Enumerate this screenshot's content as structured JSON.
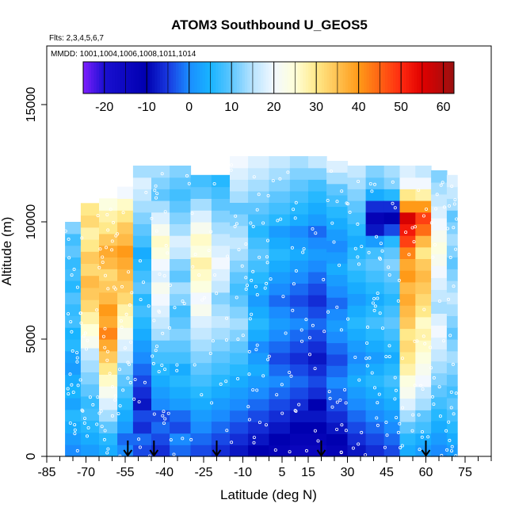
{
  "chart_data": {
    "type": "heatmap",
    "title": "ATOM3 Southbound U_GEOS5",
    "subtitle": "Flts: 2,3,4,5,6,7",
    "note": "MMDD: 1001,1004,1006,1008,1011,1014",
    "xlabel": "Latitude (deg N)",
    "ylabel": "Altitude (m)",
    "xlim": [
      -85,
      85
    ],
    "ylim": [
      0,
      17500
    ],
    "x_ticks": [
      -85,
      -70,
      -55,
      -40,
      -25,
      -10,
      5,
      15,
      30,
      45,
      60,
      75
    ],
    "y_ticks": [
      0,
      5000,
      10000,
      15000
    ],
    "colorbar": {
      "range": [
        -25,
        62.5
      ],
      "ticks": [
        -20,
        -10,
        0,
        10,
        20,
        30,
        40,
        50,
        60
      ],
      "stops": [
        {
          "v": -25,
          "c": "#7f1fff"
        },
        {
          "v": -20,
          "c": "#1a0fd0"
        },
        {
          "v": -10,
          "c": "#0000b0"
        },
        {
          "v": -5,
          "c": "#1838e0"
        },
        {
          "v": 0,
          "c": "#1a8cff"
        },
        {
          "v": 5,
          "c": "#18b4ff"
        },
        {
          "v": 10,
          "c": "#5ec6ff"
        },
        {
          "v": 15,
          "c": "#b8e4ff"
        },
        {
          "v": 20,
          "c": "#f2f8ff"
        },
        {
          "v": 25,
          "c": "#ffffd8"
        },
        {
          "v": 30,
          "c": "#ffe98a"
        },
        {
          "v": 40,
          "c": "#ff9a18"
        },
        {
          "v": 50,
          "c": "#ff2a10"
        },
        {
          "v": 55,
          "c": "#e00000"
        },
        {
          "v": 62.5,
          "c": "#9a1010"
        }
      ]
    },
    "vertical_profile_latitudes": [
      -54,
      -44,
      -20,
      20,
      60
    ],
    "lat_bands": [
      {
        "lat": [
          -78,
          -72
        ],
        "top": 10000,
        "v": [
          0,
          2,
          4,
          6,
          3,
          5,
          4,
          2,
          3,
          6,
          5,
          8,
          7,
          9,
          6,
          8,
          7,
          10,
          8,
          12
        ]
      },
      {
        "lat": [
          -72,
          -65
        ],
        "top": 10800,
        "v": [
          2,
          4,
          6,
          8,
          7,
          10,
          12,
          14,
          16,
          22,
          25,
          28,
          32,
          34,
          36,
          32,
          34,
          30,
          28,
          32,
          30
        ]
      },
      {
        "lat": [
          -65,
          -58
        ],
        "top": 11000,
        "v": [
          4,
          6,
          10,
          14,
          18,
          22,
          26,
          30,
          34,
          38,
          42,
          38,
          40,
          36,
          34,
          32,
          36,
          38,
          34,
          30,
          28,
          24
        ]
      },
      {
        "lat": [
          -58,
          -52
        ],
        "top": 11500,
        "v": [
          0,
          -2,
          2,
          4,
          6,
          8,
          10,
          12,
          16,
          18,
          22,
          26,
          28,
          32,
          34,
          36,
          38,
          40,
          36,
          34,
          30,
          26,
          20
        ]
      },
      {
        "lat": [
          -52,
          -45
        ],
        "top": 12400,
        "v": [
          -4,
          -2,
          -6,
          -4,
          -8,
          -6,
          -4,
          -2,
          0,
          2,
          4,
          6,
          8,
          6,
          10,
          8,
          6,
          4,
          8,
          10,
          12,
          14,
          16,
          18,
          14
        ]
      },
      {
        "lat": [
          -45,
          -38
        ],
        "top": 12400,
        "v": [
          -6,
          -4,
          -2,
          -4,
          0,
          2,
          4,
          6,
          8,
          10,
          14,
          16,
          18,
          20,
          22,
          18,
          20,
          24,
          26,
          22,
          18,
          14,
          10,
          12,
          14
        ]
      },
      {
        "lat": [
          -38,
          -30
        ],
        "top": 12400,
        "v": [
          -2,
          0,
          -4,
          -2,
          2,
          4,
          6,
          4,
          8,
          10,
          12,
          10,
          8,
          12,
          14,
          10,
          12,
          16,
          18,
          14,
          12,
          10,
          8,
          10,
          12
        ]
      },
      {
        "lat": [
          -30,
          -22
        ],
        "top": 12000,
        "v": [
          -4,
          -2,
          0,
          2,
          4,
          6,
          8,
          10,
          12,
          14,
          16,
          18,
          22,
          20,
          24,
          26,
          28,
          24,
          26,
          22,
          18,
          14,
          10,
          8
        ]
      },
      {
        "lat": [
          -22,
          -15
        ],
        "top": 12000,
        "v": [
          -6,
          -4,
          -2,
          0,
          2,
          4,
          6,
          8,
          10,
          12,
          14,
          16,
          14,
          12,
          16,
          18,
          20,
          18,
          16,
          14,
          12,
          10,
          8,
          6
        ]
      },
      {
        "lat": [
          -15,
          -8
        ],
        "top": 12800,
        "v": [
          -8,
          -6,
          -4,
          -2,
          0,
          2,
          4,
          6,
          8,
          10,
          12,
          14,
          12,
          10,
          8,
          10,
          12,
          14,
          16,
          14,
          12,
          10,
          14,
          16,
          18,
          20
        ]
      },
      {
        "lat": [
          -8,
          0
        ],
        "top": 12800,
        "v": [
          -10,
          -8,
          -6,
          -4,
          -2,
          0,
          2,
          4,
          2,
          0,
          4,
          6,
          4,
          2,
          4,
          6,
          8,
          10,
          8,
          6,
          8,
          10,
          12,
          14,
          16,
          18
        ]
      },
      {
        "lat": [
          0,
          8
        ],
        "top": 12800,
        "v": [
          -12,
          -10,
          -8,
          -6,
          -4,
          -2,
          0,
          -2,
          -4,
          -2,
          0,
          2,
          0,
          -2,
          0,
          2,
          4,
          6,
          4,
          2,
          6,
          8,
          10,
          12,
          14,
          16
        ]
      },
      {
        "lat": [
          8,
          15
        ],
        "top": 12800,
        "v": [
          -14,
          -12,
          -10,
          -8,
          -6,
          -4,
          -2,
          -4,
          -6,
          -4,
          -2,
          0,
          -2,
          -4,
          -2,
          0,
          2,
          4,
          2,
          0,
          4,
          6,
          8,
          10,
          12,
          14
        ]
      },
      {
        "lat": [
          15,
          22
        ],
        "top": 12800,
        "v": [
          -14,
          -12,
          -10,
          -8,
          -10,
          -6,
          -4,
          -6,
          -8,
          -6,
          -4,
          -2,
          -4,
          -6,
          -4,
          -2,
          0,
          2,
          0,
          -2,
          2,
          4,
          6,
          8,
          12,
          16
        ]
      },
      {
        "lat": [
          22,
          30
        ],
        "top": 12600,
        "v": [
          -12,
          -10,
          -8,
          -6,
          -4,
          -2,
          0,
          -2,
          -4,
          -2,
          0,
          2,
          0,
          -2,
          0,
          2,
          4,
          2,
          0,
          2,
          4,
          6,
          8,
          10,
          14,
          18
        ]
      },
      {
        "lat": [
          30,
          37
        ],
        "top": 12400,
        "v": [
          -8,
          -6,
          -4,
          -2,
          0,
          2,
          4,
          2,
          0,
          2,
          4,
          6,
          4,
          2,
          4,
          6,
          8,
          6,
          4,
          6,
          8,
          10,
          12,
          14,
          16
        ]
      },
      {
        "lat": [
          37,
          44
        ],
        "top": 12400,
        "v": [
          -6,
          -4,
          -2,
          0,
          2,
          4,
          6,
          4,
          2,
          4,
          6,
          8,
          6,
          4,
          6,
          8,
          10,
          8,
          2,
          -8,
          -12,
          -6,
          4,
          10,
          12
        ]
      },
      {
        "lat": [
          44,
          50
        ],
        "top": 12400,
        "v": [
          -4,
          -2,
          0,
          2,
          4,
          6,
          8,
          6,
          4,
          6,
          8,
          10,
          8,
          6,
          8,
          10,
          12,
          10,
          6,
          -4,
          -10,
          -6,
          6,
          12,
          14
        ]
      },
      {
        "lat": [
          50,
          56
        ],
        "top": 12400,
        "v": [
          4,
          6,
          10,
          14,
          18,
          22,
          24,
          28,
          30,
          32,
          30,
          34,
          36,
          38,
          36,
          40,
          38,
          42,
          48,
          52,
          56,
          40,
          30,
          20,
          18
        ]
      },
      {
        "lat": [
          56,
          62
        ],
        "top": 12400,
        "v": [
          2,
          4,
          8,
          10,
          14,
          16,
          20,
          22,
          24,
          26,
          28,
          26,
          30,
          32,
          34,
          36,
          34,
          30,
          36,
          44,
          48,
          40,
          28,
          20,
          16
        ]
      },
      {
        "lat": [
          62,
          68
        ],
        "top": 12200,
        "v": [
          0,
          2,
          4,
          6,
          8,
          10,
          12,
          14,
          16,
          18,
          20,
          18,
          14,
          16,
          18,
          20,
          22,
          24,
          22,
          20,
          18,
          16,
          14,
          12
        ]
      },
      {
        "lat": [
          68,
          72
        ],
        "top": 12000,
        "v": [
          2,
          4,
          6,
          8,
          10,
          8,
          10,
          12,
          14,
          12,
          10,
          12,
          14,
          16,
          14,
          12,
          10,
          12,
          14,
          12,
          10,
          14,
          16,
          18
        ]
      }
    ]
  }
}
